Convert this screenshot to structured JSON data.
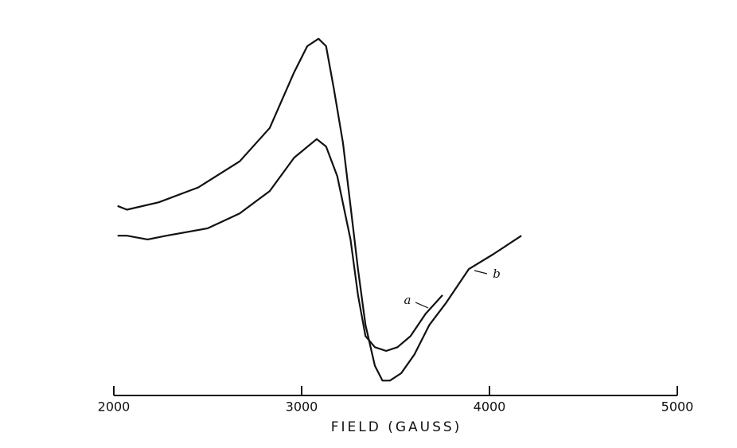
{
  "chart_data": {
    "type": "line",
    "x_label": "FIELD (GAUSS)",
    "xlim": [
      2000,
      5000
    ],
    "xticks": [
      2000,
      3000,
      4000,
      5000
    ],
    "ylim": [
      0,
      100
    ],
    "color": "#111111",
    "series": [
      {
        "name": "a",
        "x": [
          2020,
          2070,
          2180,
          2280,
          2500,
          2670,
          2830,
          2960,
          3080,
          3130,
          3190,
          3260,
          3300,
          3340,
          3390,
          3450,
          3510,
          3580,
          3660,
          3750
        ],
        "values": [
          43,
          43,
          42,
          43,
          45,
          49,
          55,
          64,
          69,
          67,
          59,
          42,
          27,
          16,
          13,
          12,
          13,
          16,
          22,
          27
        ]
      },
      {
        "name": "b",
        "x": [
          2020,
          2070,
          2240,
          2450,
          2670,
          2830,
          2960,
          3030,
          3090,
          3130,
          3170,
          3220,
          3260,
          3300,
          3340,
          3390,
          3430,
          3470,
          3530,
          3600,
          3680,
          3770,
          3890,
          4020,
          4170
        ],
        "values": [
          51,
          50,
          52,
          56,
          63,
          72,
          87,
          94,
          96,
          94,
          83,
          68,
          51,
          34,
          19,
          8,
          4,
          4,
          6,
          11,
          19,
          25,
          34,
          38,
          43
        ]
      }
    ]
  }
}
